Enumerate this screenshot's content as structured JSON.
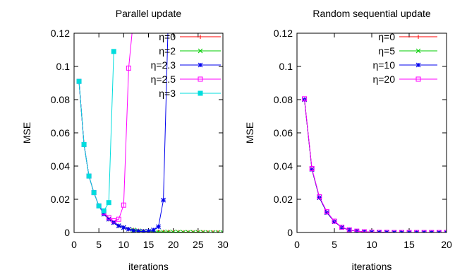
{
  "chart_data": [
    {
      "type": "line",
      "title": "Parallel update",
      "xlabel": "iterations",
      "ylabel": "MSE",
      "xlim": [
        0,
        30
      ],
      "ylim": [
        0,
        0.12
      ],
      "xticks": [
        0,
        5,
        10,
        15,
        20,
        25,
        30
      ],
      "yticks": [
        0,
        0.02,
        0.04,
        0.06,
        0.08,
        0.1,
        0.12
      ],
      "ytick_labels": [
        "0",
        "0.02",
        "0.04",
        "0.06",
        "0.08",
        "0.1",
        "0.12"
      ],
      "legend_position": "top-right",
      "series": [
        {
          "name": "η=0",
          "color": "#ff0000",
          "marker": "plus",
          "x": [
            1,
            2,
            3,
            4,
            5,
            6,
            7,
            8,
            9,
            10,
            11,
            12,
            13,
            14,
            15,
            16,
            17,
            18,
            19,
            20,
            21,
            22,
            23,
            24,
            25,
            26,
            27,
            28,
            29,
            30
          ],
          "y": [
            0.091,
            0.053,
            0.034,
            0.024,
            0.016,
            0.012,
            0.008,
            0.006,
            0.004,
            0.003,
            0.002,
            0.0015,
            0.001,
            0.0008,
            0.0006,
            0.0005,
            0.0004,
            0.0003,
            0.0003,
            0.0002,
            0.0002,
            0.0001,
            0.0001,
            0.0001,
            0.0001,
            0.0001,
            0,
            0,
            0,
            0
          ]
        },
        {
          "name": "η=2",
          "color": "#00cc00",
          "marker": "cross",
          "x": [
            1,
            2,
            3,
            4,
            5,
            6,
            7,
            8,
            9,
            10,
            11,
            12,
            13,
            14,
            15,
            16,
            17,
            18,
            19,
            20,
            21,
            22,
            23,
            24,
            25,
            26,
            27,
            28,
            29,
            30
          ],
          "y": [
            0.091,
            0.053,
            0.034,
            0.024,
            0.016,
            0.012,
            0.008,
            0.006,
            0.004,
            0.003,
            0.002,
            0.0015,
            0.001,
            0.0008,
            0.0006,
            0.0005,
            0.0004,
            0.0003,
            0.0003,
            0.0002,
            0.0002,
            0.0001,
            0.0001,
            0.0001,
            0.0001,
            0.0001,
            0,
            0,
            0,
            0
          ]
        },
        {
          "name": "η=2.3",
          "color": "#0000ee",
          "marker": "star",
          "x": [
            1,
            2,
            3,
            4,
            5,
            6,
            7,
            8,
            9,
            10,
            11,
            12,
            13,
            14,
            15,
            16,
            17,
            18,
            19
          ],
          "y": [
            0.091,
            0.053,
            0.034,
            0.024,
            0.016,
            0.011,
            0.008,
            0.006,
            0.004,
            0.003,
            0.002,
            0.001,
            0.0007,
            0.0006,
            0.0008,
            0.0015,
            0.0035,
            0.0195,
            0.13
          ]
        },
        {
          "name": "η=2.5",
          "color": "#ff00ff",
          "marker": "open-square",
          "x": [
            1,
            2,
            3,
            4,
            5,
            6,
            7,
            8,
            9,
            10,
            11,
            12
          ],
          "y": [
            0.091,
            0.053,
            0.034,
            0.024,
            0.016,
            0.012,
            0.009,
            0.007,
            0.008,
            0.0165,
            0.099,
            0.13
          ]
        },
        {
          "name": "η=3",
          "color": "#00dddd",
          "marker": "filled-square",
          "x": [
            1,
            2,
            3,
            4,
            5,
            6,
            7,
            8
          ],
          "y": [
            0.091,
            0.053,
            0.034,
            0.024,
            0.016,
            0.013,
            0.018,
            0.109
          ]
        }
      ]
    },
    {
      "type": "line",
      "title": "Random sequential update",
      "xlabel": "iterations",
      "ylabel": "MSE",
      "xlim": [
        0,
        20
      ],
      "ylim": [
        0,
        0.12
      ],
      "xticks": [
        0,
        5,
        10,
        15,
        20
      ],
      "yticks": [
        0,
        0.02,
        0.04,
        0.06,
        0.08,
        0.1,
        0.12
      ],
      "ytick_labels": [
        "0",
        "0.02",
        "0.04",
        "0.06",
        "0.08",
        "0.1",
        "0.12"
      ],
      "legend_position": "top-right",
      "series": [
        {
          "name": "η=0",
          "color": "#ff0000",
          "marker": "plus",
          "x": [
            1,
            2,
            3,
            4,
            5,
            6,
            7,
            8,
            9,
            10,
            11,
            12,
            13,
            14,
            15,
            16,
            17,
            18,
            19,
            20
          ],
          "y": [
            0.08,
            0.038,
            0.021,
            0.012,
            0.0065,
            0.003,
            0.0015,
            0.0008,
            0.0004,
            0.0002,
            0.0001,
            0.0001,
            0,
            0,
            0,
            0,
            0,
            0,
            0,
            0
          ]
        },
        {
          "name": "η=5",
          "color": "#00cc00",
          "marker": "cross",
          "x": [
            1,
            2,
            3,
            4,
            5,
            6,
            7,
            8,
            9,
            10,
            11,
            12,
            13,
            14,
            15,
            16,
            17,
            18,
            19,
            20
          ],
          "y": [
            0.08,
            0.038,
            0.021,
            0.012,
            0.0065,
            0.003,
            0.0015,
            0.0008,
            0.0004,
            0.0002,
            0.0001,
            0.0001,
            0,
            0,
            0,
            0,
            0,
            0,
            0,
            0
          ]
        },
        {
          "name": "η=10",
          "color": "#0000ee",
          "marker": "star",
          "x": [
            1,
            2,
            3,
            4,
            5,
            6,
            7,
            8,
            9,
            10,
            11,
            12,
            13,
            14,
            15,
            16,
            17,
            18,
            19,
            20
          ],
          "y": [
            0.08,
            0.038,
            0.021,
            0.012,
            0.0065,
            0.003,
            0.0015,
            0.0008,
            0.0004,
            0.0002,
            0.0001,
            0.0001,
            0,
            0,
            0,
            0,
            0,
            0,
            0,
            0
          ]
        },
        {
          "name": "η=20",
          "color": "#ff00ff",
          "marker": "open-square",
          "x": [
            1,
            2,
            3,
            4,
            5,
            6,
            7,
            8,
            9,
            10,
            11,
            12,
            13,
            14,
            15,
            16,
            17,
            18,
            19,
            20
          ],
          "y": [
            0.0805,
            0.0385,
            0.0215,
            0.0125,
            0.0068,
            0.0032,
            0.0016,
            0.0008,
            0.0004,
            0.0002,
            0.0001,
            0.0001,
            0,
            0,
            0,
            0,
            0,
            0,
            0,
            0
          ]
        }
      ]
    }
  ]
}
